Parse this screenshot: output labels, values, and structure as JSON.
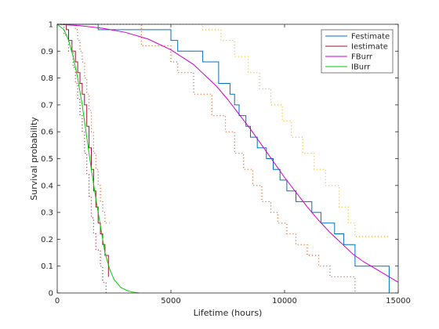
{
  "chart_data": {
    "type": "line",
    "title": "",
    "xlabel": "Lifetime (hours)",
    "ylabel": "Survival probability",
    "xlim": [
      0,
      15000
    ],
    "ylim": [
      0,
      1
    ],
    "xticks": [
      0,
      5000,
      10000,
      15000
    ],
    "xtick_labels": [
      "0",
      "5000",
      "10000",
      "15000"
    ],
    "yticks": [
      0,
      0.1,
      0.2,
      0.3,
      0.4,
      0.5,
      0.6,
      0.7,
      0.8,
      0.9,
      1
    ],
    "ytick_labels": [
      "0",
      "0.1",
      "0.2",
      "0.3",
      "0.4",
      "0.5",
      "0.6",
      "0.7",
      "0.8",
      "0.9",
      "1"
    ],
    "grid": false,
    "legend_position": "top-right",
    "series": [
      {
        "name": "Festimate",
        "style": "step",
        "color": "#0072bd",
        "x": [
          0,
          1800,
          5000,
          5300,
          6400,
          7100,
          7600,
          7800,
          8000,
          8300,
          8500,
          8800,
          9200,
          9500,
          9800,
          10100,
          10500,
          11200,
          11600,
          12200,
          12600,
          13100,
          14600,
          14600
        ],
        "y": [
          1,
          0.98,
          0.94,
          0.9,
          0.86,
          0.78,
          0.74,
          0.7,
          0.66,
          0.62,
          0.58,
          0.54,
          0.5,
          0.46,
          0.42,
          0.38,
          0.34,
          0.3,
          0.26,
          0.22,
          0.18,
          0.1,
          0.1,
          0
        ]
      },
      {
        "name": "Festimate lower confidence bound",
        "style": "dotted-step",
        "color": "#d95319",
        "x": [
          0,
          3700,
          5000,
          5300,
          6000,
          6800,
          7400,
          7800,
          8200,
          8600,
          9000,
          9400,
          9700,
          10100,
          10500,
          11000,
          11500,
          12000,
          13100
        ],
        "y": [
          1,
          0.92,
          0.86,
          0.82,
          0.74,
          0.66,
          0.6,
          0.52,
          0.46,
          0.4,
          0.34,
          0.3,
          0.26,
          0.22,
          0.18,
          0.14,
          0.1,
          0.06,
          0
        ]
      },
      {
        "name": "Festimate upper confidence bound",
        "style": "dotted-step",
        "color": "#edb120",
        "x": [
          0,
          4700,
          6400,
          7200,
          7800,
          8400,
          8900,
          9400,
          9900,
          10300,
          10800,
          11300,
          11800,
          12400,
          12800,
          13100,
          14600
        ],
        "y": [
          1,
          1.0,
          0.98,
          0.94,
          0.88,
          0.82,
          0.76,
          0.7,
          0.64,
          0.58,
          0.52,
          0.46,
          0.4,
          0.32,
          0.26,
          0.21,
          0.21
        ]
      },
      {
        "name": "Iestimate",
        "style": "step",
        "color": "#a2142f",
        "x": [
          0,
          400,
          500,
          650,
          800,
          900,
          1000,
          1100,
          1200,
          1300,
          1400,
          1500,
          1600,
          1700,
          1800,
          1900,
          2000,
          2100,
          2250,
          2250
        ],
        "y": [
          1,
          0.98,
          0.94,
          0.9,
          0.86,
          0.82,
          0.78,
          0.74,
          0.7,
          0.62,
          0.54,
          0.46,
          0.38,
          0.32,
          0.26,
          0.22,
          0.18,
          0.14,
          0.14,
          0.06
        ]
      },
      {
        "name": "Iestimate lower confidence bound",
        "style": "dotted-step",
        "color": "#a2142f",
        "x": [
          0,
          300,
          500,
          700,
          800,
          900,
          1000,
          1100,
          1200,
          1300,
          1400,
          1500,
          1600,
          1700,
          1900,
          2000,
          2150
        ],
        "y": [
          1,
          0.96,
          0.9,
          0.84,
          0.78,
          0.72,
          0.66,
          0.6,
          0.52,
          0.44,
          0.36,
          0.28,
          0.22,
          0.16,
          0.1,
          0.04,
          0
        ]
      },
      {
        "name": "Iestimate upper confidence bound",
        "style": "dotted-step",
        "color": "#d95319",
        "x": [
          0,
          600,
          800,
          900,
          1000,
          1100,
          1200,
          1300,
          1400,
          1500,
          1600,
          1700,
          1800,
          1900,
          2000,
          2100,
          2300
        ],
        "y": [
          1,
          1.0,
          0.98,
          0.94,
          0.9,
          0.86,
          0.8,
          0.74,
          0.68,
          0.6,
          0.52,
          0.46,
          0.4,
          0.34,
          0.3,
          0.26,
          0.26
        ]
      },
      {
        "name": "FBurr",
        "style": "line",
        "color": "#cc00cc",
        "x": [
          0,
          1000,
          2000,
          3000,
          4000,
          5000,
          6000,
          7000,
          7500,
          8000,
          8500,
          9000,
          9500,
          10000,
          10500,
          11000,
          11500,
          12000,
          12500,
          13000,
          13500,
          14000,
          14500,
          15000
        ],
        "y": [
          1,
          0.995,
          0.985,
          0.97,
          0.945,
          0.905,
          0.85,
          0.77,
          0.72,
          0.665,
          0.61,
          0.55,
          0.49,
          0.43,
          0.375,
          0.32,
          0.27,
          0.225,
          0.185,
          0.145,
          0.115,
          0.09,
          0.065,
          0.04
        ]
      },
      {
        "name": "IBurr",
        "style": "line",
        "color": "#00cc00",
        "x": [
          0,
          300,
          500,
          700,
          900,
          1100,
          1300,
          1500,
          1700,
          1900,
          2100,
          2300,
          2500,
          2800,
          3100,
          3400,
          3600
        ],
        "y": [
          1,
          0.98,
          0.94,
          0.88,
          0.8,
          0.7,
          0.58,
          0.46,
          0.35,
          0.25,
          0.15,
          0.09,
          0.05,
          0.02,
          0.008,
          0.002,
          0
        ]
      }
    ],
    "legend_entries": [
      {
        "name": "Festimate",
        "color": "#0072bd"
      },
      {
        "name": "Iestimate",
        "color": "#a2142f"
      },
      {
        "name": "FBurr",
        "color": "#cc00cc"
      },
      {
        "name": "IBurr",
        "color": "#00cc00"
      }
    ]
  }
}
